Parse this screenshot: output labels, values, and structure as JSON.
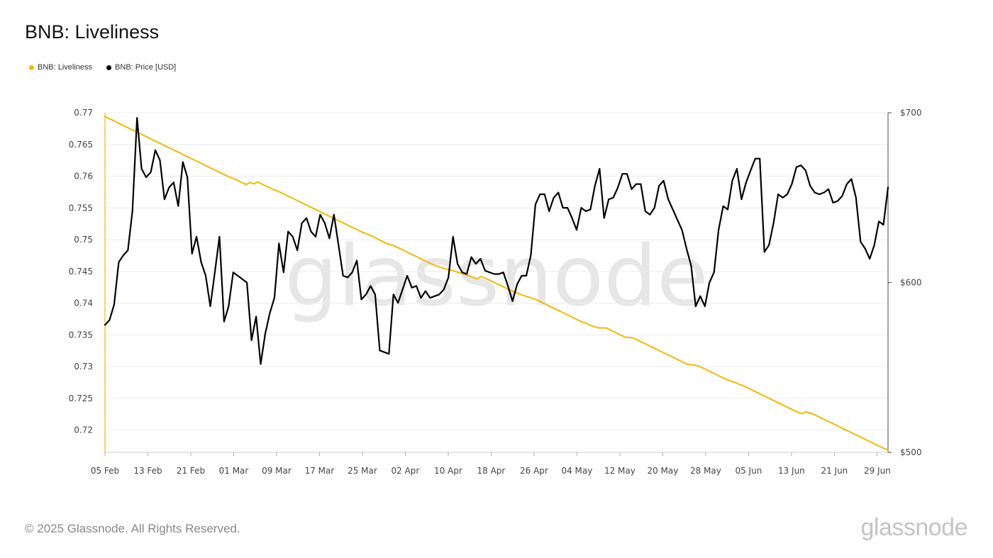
{
  "title": "BNB: Liveliness",
  "legend": [
    {
      "label": "BNB: Liveliness",
      "color": "#f0b90b"
    },
    {
      "label": "BNB: Price [USD]",
      "color": "#000000"
    }
  ],
  "watermark": "glassnode",
  "footer": "© 2025 Glassnode. All Rights Reserved.",
  "brand": "glassnode",
  "chart_data": {
    "type": "line",
    "x_start": "2025-02-05",
    "x_end": "2025-07-01",
    "x_ticks": [
      "05 Feb",
      "13 Feb",
      "21 Feb",
      "01 Mar",
      "09 Mar",
      "17 Mar",
      "25 Mar",
      "02 Apr",
      "10 Apr",
      "18 Apr",
      "26 Apr",
      "04 May",
      "12 May",
      "20 May",
      "28 May",
      "05 Jun",
      "13 Jun",
      "21 Jun",
      "29 Jun"
    ],
    "y_left": {
      "ticks": [
        "0.72",
        "0.725",
        "0.73",
        "0.735",
        "0.74",
        "0.745",
        "0.75",
        "0.755",
        "0.76",
        "0.765",
        "0.77"
      ],
      "range": [
        0.7165,
        0.77
      ]
    },
    "y_right": {
      "ticks": [
        "$500",
        "$600",
        "$700"
      ],
      "range": [
        500,
        700
      ]
    },
    "grid": true,
    "legend_position": "top-left",
    "series": [
      {
        "name": "BNB: Liveliness",
        "axis": "left",
        "color": "#f0b90b",
        "values": [
          0.7694,
          0.7691,
          0.7688,
          0.7685,
          0.7682,
          0.7679,
          0.7676,
          0.7673,
          0.767,
          0.7667,
          0.7664,
          0.7661,
          0.7658,
          0.7655,
          0.7652,
          0.7649,
          0.7646,
          0.7643,
          0.764,
          0.7637,
          0.7634,
          0.7631,
          0.7628,
          0.7625,
          0.7622,
          0.7619,
          0.7616,
          0.7613,
          0.761,
          0.7607,
          0.7604,
          0.7601,
          0.7598,
          0.7596,
          0.7593,
          0.759,
          0.7587,
          0.759,
          0.7588,
          0.7591,
          0.7588,
          0.7585,
          0.7582,
          0.7579,
          0.7577,
          0.7574,
          0.7571,
          0.7568,
          0.7565,
          0.7562,
          0.7559,
          0.7556,
          0.7553,
          0.755,
          0.7547,
          0.7544,
          0.7541,
          0.7538,
          0.7535,
          0.7532,
          0.7529,
          0.7526,
          0.7523,
          0.752,
          0.7517,
          0.7514,
          0.7511,
          0.7509,
          0.7506,
          0.7503,
          0.75,
          0.7497,
          0.7494,
          0.7492,
          0.749,
          0.7487,
          0.7484,
          0.7481,
          0.7478,
          0.7475,
          0.7472,
          0.7469,
          0.7466,
          0.7463,
          0.746,
          0.7458,
          0.7456,
          0.7454,
          0.7453,
          0.7451,
          0.7449,
          0.7447,
          0.7445,
          0.7443,
          0.7441,
          0.7438,
          0.7442,
          0.744,
          0.7437,
          0.7434,
          0.7431,
          0.7428,
          0.7425,
          0.7422,
          0.7419,
          0.7417,
          0.7414,
          0.7412,
          0.741,
          0.7408,
          0.7406,
          0.7403,
          0.74,
          0.7397,
          0.7394,
          0.7391,
          0.7388,
          0.7385,
          0.7382,
          0.7379,
          0.7376,
          0.7373,
          0.737,
          0.7368,
          0.7365,
          0.7363,
          0.7361,
          0.7361,
          0.7361,
          0.7358,
          0.7355,
          0.7352,
          0.7349,
          0.7346,
          0.7346,
          0.7345,
          0.7342,
          0.7339,
          0.7336,
          0.7333,
          0.733,
          0.7327,
          0.7324,
          0.7321,
          0.7318,
          0.7315,
          0.7312,
          0.7309,
          0.7306,
          0.7303,
          0.7303,
          0.7302,
          0.73,
          0.7297,
          0.7294,
          0.7291,
          0.7288,
          0.7285,
          0.7282,
          0.7279,
          0.7277,
          0.7275,
          0.7272,
          0.727,
          0.7267,
          0.7264,
          0.7261,
          0.7258,
          0.7255,
          0.7252,
          0.7249,
          0.7246,
          0.7243,
          0.724,
          0.7237,
          0.7234,
          0.7231,
          0.7228,
          0.7226,
          0.7229,
          0.7227,
          0.7225,
          0.7222,
          0.7219,
          0.7216,
          0.7213,
          0.721,
          0.7207,
          0.7204,
          0.7201,
          0.7198,
          0.7195,
          0.7192,
          0.7189,
          0.7186,
          0.7183,
          0.718,
          0.7177,
          0.7174,
          0.7171,
          0.7169
        ]
      },
      {
        "name": "BNB: Price [USD]",
        "axis": "right",
        "color": "#000000",
        "values": [
          575,
          578,
          587,
          612,
          616,
          619,
          642,
          697,
          667,
          662,
          665,
          678,
          672,
          649,
          656,
          659,
          645,
          671,
          662,
          617,
          627,
          612,
          604,
          586,
          606,
          627,
          577,
          586,
          606,
          604,
          602,
          600,
          566,
          580,
          552,
          570,
          582,
          591,
          623,
          606,
          630,
          627,
          619,
          635,
          638,
          630,
          627,
          640,
          635,
          626,
          640,
          622,
          604,
          603,
          606,
          613,
          590,
          593,
          598,
          593,
          560,
          559,
          558,
          593,
          588,
          596,
          604,
          597,
          598,
          591,
          595,
          591,
          592,
          593,
          596,
          603,
          627,
          611,
          606,
          605,
          615,
          611,
          614,
          607,
          606,
          605,
          605,
          606,
          598,
          589,
          599,
          604,
          604,
          616,
          646,
          652,
          652,
          642,
          650,
          653,
          644,
          644,
          638,
          631,
          644,
          642,
          643,
          657,
          667,
          638,
          649,
          650,
          656,
          664,
          664,
          655,
          658,
          658,
          642,
          640,
          644,
          657,
          660,
          649,
          643,
          637,
          631,
          620,
          610,
          586,
          592,
          586,
          600,
          606,
          631,
          645,
          643,
          660,
          667,
          649,
          659,
          666,
          673,
          673,
          618,
          622,
          635,
          652,
          650,
          652,
          658,
          668,
          669,
          666,
          657,
          653,
          652,
          653,
          655,
          647,
          648,
          651,
          658,
          661,
          650,
          624,
          620,
          614,
          622,
          636,
          634,
          656
        ]
      }
    ]
  }
}
